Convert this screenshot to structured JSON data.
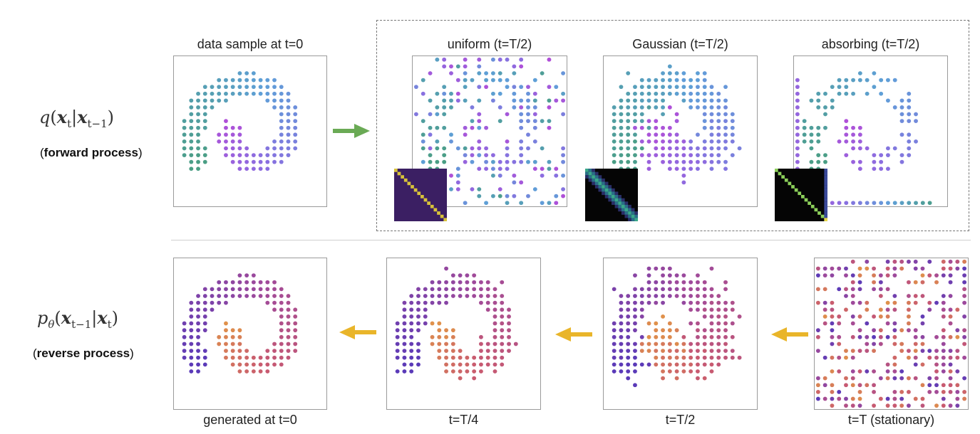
{
  "forward": {
    "formula": "q(x_t | x_{t-1})",
    "label_open": "(",
    "label_bold": "forward process",
    "label_close": ")",
    "arrow_color": "#6aaa55",
    "panels": [
      {
        "title": "data sample at t=0",
        "kind": "spiral"
      },
      {
        "title": "uniform (t=T/2)",
        "kind": "uniform-noise",
        "inset": "uniform-matrix"
      },
      {
        "title": "Gaussian (t=T/2)",
        "kind": "gaussian-noise",
        "inset": "gaussian-matrix"
      },
      {
        "title": "absorbing (t=T/2)",
        "kind": "absorbing-noise",
        "inset": "absorbing-matrix"
      }
    ]
  },
  "reverse": {
    "formula": "p_θ(x_{t-1} | x_t)",
    "label_open": "(",
    "label_bold": "reverse process",
    "label_close": ")",
    "arrow_color": "#e9b52a",
    "panels": [
      {
        "caption": "generated at t=0",
        "kind": "spiral"
      },
      {
        "caption": "t=T/4",
        "kind": "quarter-noise"
      },
      {
        "caption": "t=T/2",
        "kind": "half-noise"
      },
      {
        "caption": "t=T (stationary)",
        "kind": "full-noise"
      }
    ]
  },
  "colors": {
    "forward_palette": [
      "#b04fd8",
      "#8a6ee0",
      "#5f9fd8",
      "#4a9e84"
    ],
    "reverse_palette": [
      "#e0924a",
      "#c85a70",
      "#a04a9a",
      "#5a3ab8"
    ]
  }
}
